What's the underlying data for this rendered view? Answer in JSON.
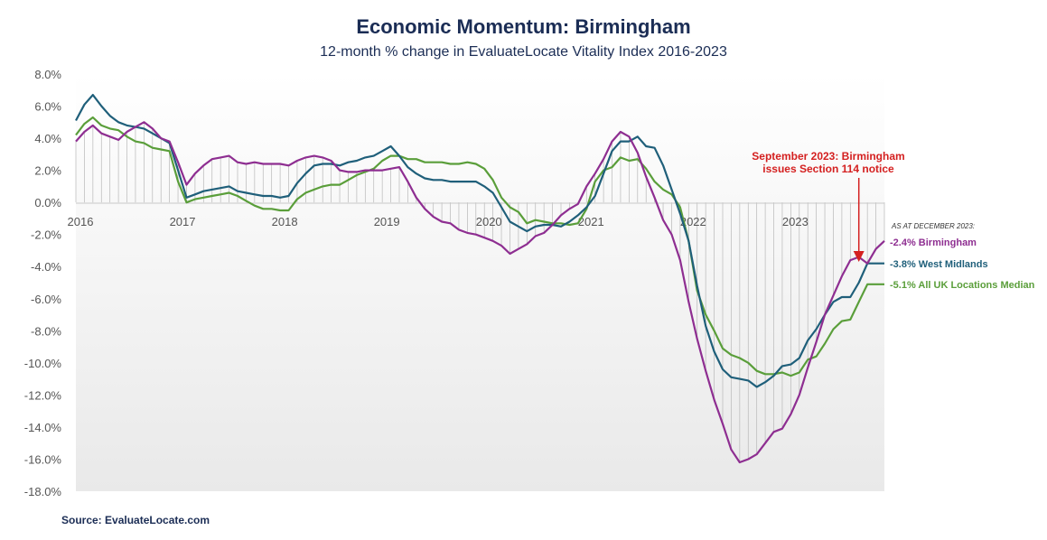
{
  "chart_data": {
    "type": "line",
    "title": "Economic Momentum: Birmingham",
    "subtitle": "12-month % change in EvaluateLocate Vitality Index 2016-2023",
    "source": "Source: EvaluateLocate.com",
    "x_start": "2016-01",
    "x_end": "2023-12",
    "x_tick_labels": [
      "2016",
      "2017",
      "2018",
      "2019",
      "2020",
      "2021",
      "2022",
      "2023"
    ],
    "y_tick_labels": [
      "8.0%",
      "6.0%",
      "4.0%",
      "2.0%",
      "0.0%",
      "-2.0%",
      "-4.0%",
      "-6.0%",
      "-8.0%",
      "-10.0%",
      "-12.0%",
      "-14.0%",
      "-16.0%",
      "-18.0%"
    ],
    "ylim": [
      -18,
      8
    ],
    "annotation": {
      "lines": [
        "September 2023: Birmingham",
        "issues Section 114 notice"
      ],
      "date": "2023-09"
    },
    "as_at_label": "AS AT DECEMBER  2023:",
    "series": [
      {
        "name": "Birmingham",
        "end_label": "-2.4% Birmingham",
        "color": "#8e2e91",
        "values": [
          3.8,
          4.4,
          4.8,
          4.3,
          4.1,
          3.9,
          4.4,
          4.7,
          5.0,
          4.6,
          4.0,
          3.8,
          2.5,
          1.1,
          1.8,
          2.3,
          2.7,
          2.8,
          2.9,
          2.5,
          2.4,
          2.5,
          2.4,
          2.4,
          2.4,
          2.3,
          2.6,
          2.8,
          2.9,
          2.8,
          2.6,
          2.0,
          1.9,
          1.9,
          2.0,
          2.0,
          2.0,
          2.1,
          2.2,
          1.3,
          0.3,
          -0.4,
          -0.9,
          -1.2,
          -1.3,
          -1.7,
          -1.9,
          -2.0,
          -2.2,
          -2.4,
          -2.7,
          -3.2,
          -2.9,
          -2.6,
          -2.1,
          -1.9,
          -1.4,
          -0.8,
          -0.4,
          -0.1,
          1.0,
          1.8,
          2.7,
          3.8,
          4.4,
          4.1,
          3.1,
          1.6,
          0.3,
          -1.1,
          -2.0,
          -3.6,
          -6.2,
          -8.5,
          -10.5,
          -12.3,
          -13.8,
          -15.4,
          -16.2,
          -16.0,
          -15.7,
          -15.0,
          -14.3,
          -14.1,
          -13.2,
          -12.0,
          -10.3,
          -8.7,
          -7.0,
          -5.8,
          -4.6,
          -3.6,
          -3.4,
          -3.8,
          -2.9,
          -2.4
        ]
      },
      {
        "name": "West Midlands",
        "end_label": "-3.8% West Midlands",
        "color": "#1f5f7a",
        "values": [
          5.1,
          6.1,
          6.7,
          6.0,
          5.4,
          5.0,
          4.8,
          4.7,
          4.6,
          4.3,
          4.0,
          3.7,
          2.0,
          0.3,
          0.5,
          0.7,
          0.8,
          0.9,
          1.0,
          0.7,
          0.6,
          0.5,
          0.4,
          0.4,
          0.3,
          0.4,
          1.2,
          1.8,
          2.3,
          2.4,
          2.4,
          2.3,
          2.5,
          2.6,
          2.8,
          2.9,
          3.2,
          3.5,
          2.9,
          2.2,
          1.8,
          1.5,
          1.4,
          1.4,
          1.3,
          1.3,
          1.3,
          1.3,
          1.0,
          0.6,
          -0.3,
          -1.2,
          -1.5,
          -1.8,
          -1.5,
          -1.4,
          -1.4,
          -1.5,
          -1.2,
          -0.8,
          -0.3,
          0.4,
          1.8,
          3.2,
          3.8,
          3.8,
          4.1,
          3.5,
          3.4,
          2.3,
          0.8,
          -0.7,
          -2.4,
          -5.2,
          -7.7,
          -9.3,
          -10.4,
          -10.9,
          -11.0,
          -11.1,
          -11.5,
          -11.2,
          -10.8,
          -10.2,
          -10.1,
          -9.7,
          -8.6,
          -7.9,
          -7.0,
          -6.2,
          -5.9,
          -5.9,
          -5.0,
          -3.8,
          -3.8,
          -3.8
        ]
      },
      {
        "name": "All UK Locations Median",
        "end_label": "-5.1% All UK Locations Median",
        "color": "#5a9e3a",
        "values": [
          4.2,
          4.9,
          5.3,
          4.8,
          4.6,
          4.5,
          4.1,
          3.8,
          3.7,
          3.4,
          3.3,
          3.2,
          1.3,
          0.0,
          0.2,
          0.3,
          0.4,
          0.5,
          0.6,
          0.4,
          0.1,
          -0.2,
          -0.4,
          -0.4,
          -0.5,
          -0.5,
          0.2,
          0.6,
          0.8,
          1.0,
          1.1,
          1.1,
          1.4,
          1.7,
          1.9,
          2.1,
          2.6,
          2.9,
          2.9,
          2.7,
          2.7,
          2.5,
          2.5,
          2.5,
          2.4,
          2.4,
          2.5,
          2.4,
          2.1,
          1.4,
          0.3,
          -0.3,
          -0.6,
          -1.3,
          -1.1,
          -1.2,
          -1.3,
          -1.3,
          -1.4,
          -1.3,
          -0.4,
          1.3,
          2.0,
          2.2,
          2.8,
          2.6,
          2.7,
          2.1,
          1.3,
          0.8,
          0.5,
          -0.3,
          -2.4,
          -5.5,
          -7.0,
          -8.0,
          -9.1,
          -9.5,
          -9.7,
          -10.0,
          -10.5,
          -10.7,
          -10.7,
          -10.6,
          -10.8,
          -10.6,
          -9.8,
          -9.6,
          -8.8,
          -7.9,
          -7.4,
          -7.3,
          -6.2,
          -5.1,
          -5.1,
          -5.1
        ]
      }
    ]
  }
}
